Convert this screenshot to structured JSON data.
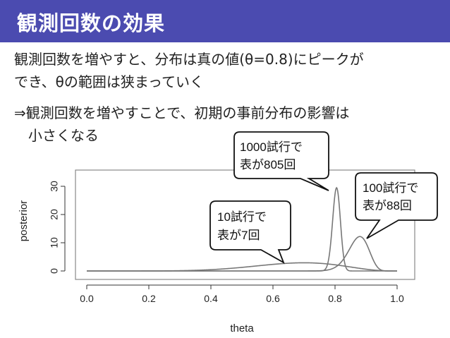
{
  "slide": {
    "title": "観測回数の効果",
    "lines": [
      "観測回数を増やすと、分布は真の値(θ=0.8)にピークが",
      "でき、θの範囲は狭まっていく",
      "⇒観測回数を増やすことで、初期の事前分布の影響は",
      "　小さくなる"
    ]
  },
  "chart_data": {
    "type": "line",
    "xlabel": "theta",
    "ylabel": "posterior",
    "xlim": [
      0.0,
      1.0
    ],
    "ylim": [
      0,
      35
    ],
    "xticks": [
      "0.0",
      "0.2",
      "0.4",
      "0.6",
      "0.8",
      "1.0"
    ],
    "yticks": [
      "0",
      "10",
      "20",
      "30"
    ],
    "grid": false,
    "series": [
      {
        "trials": 10,
        "heads": 7,
        "peak_x": 0.7,
        "peak_y": 2.9
      },
      {
        "trials": 100,
        "heads": 88,
        "peak_x": 0.88,
        "peak_y": 12.2
      },
      {
        "trials": 1000,
        "heads": 805,
        "peak_x": 0.805,
        "peak_y": 29.5
      }
    ],
    "annotations": [
      {
        "line1": "1000試行で",
        "line2": "表が805回"
      },
      {
        "line1": "100試行で",
        "line2": "表が88回"
      },
      {
        "line1": "10試行で",
        "line2": "表が7回"
      }
    ]
  }
}
